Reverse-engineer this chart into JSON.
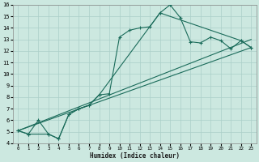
{
  "xlabel": "Humidex (Indice chaleur)",
  "bg_color": "#cce8e0",
  "grid_color": "#aacfc8",
  "line_color": "#1a6b5a",
  "xlim": [
    -0.5,
    23.5
  ],
  "ylim": [
    4,
    16
  ],
  "xticks": [
    0,
    1,
    2,
    3,
    4,
    5,
    6,
    7,
    8,
    9,
    10,
    11,
    12,
    13,
    14,
    15,
    16,
    17,
    18,
    19,
    20,
    21,
    22,
    23
  ],
  "yticks": [
    4,
    5,
    6,
    7,
    8,
    9,
    10,
    11,
    12,
    13,
    14,
    15,
    16
  ],
  "series1_x": [
    0,
    1,
    2,
    3,
    4,
    5,
    6,
    7,
    8,
    9,
    10,
    11,
    12,
    13,
    14,
    15,
    16,
    17,
    18,
    19,
    20,
    21,
    22,
    23
  ],
  "series1_y": [
    5.1,
    4.8,
    6.0,
    4.8,
    4.4,
    6.5,
    7.0,
    7.3,
    8.2,
    8.3,
    13.2,
    13.8,
    14.0,
    14.1,
    15.3,
    16.0,
    14.9,
    12.8,
    12.7,
    13.2,
    12.9,
    12.2,
    12.9,
    12.3
  ],
  "series2_x": [
    0,
    1,
    3,
    4,
    5,
    6,
    7,
    8,
    14,
    22,
    23
  ],
  "series2_y": [
    5.1,
    4.8,
    4.8,
    4.4,
    6.5,
    7.0,
    7.3,
    8.2,
    15.3,
    12.9,
    12.3
  ],
  "line1_x": [
    0,
    23
  ],
  "line1_y": [
    5.1,
    12.3
  ],
  "line2_x": [
    0,
    23
  ],
  "line2_y": [
    5.1,
    13.0
  ]
}
